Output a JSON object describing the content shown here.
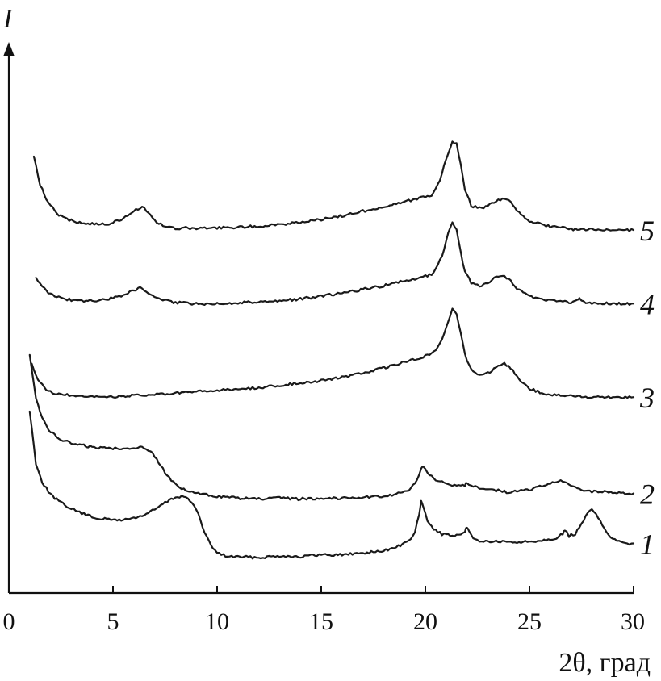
{
  "chart_data": {
    "type": "line",
    "ylabel": "I",
    "xlabel": "2θ, град",
    "xlim": [
      0,
      30
    ],
    "xticks": [
      0,
      5,
      10,
      15,
      20,
      25,
      30
    ],
    "grid": false,
    "legend": "none",
    "colors": {
      "trace": "#1a1a1a",
      "axis": "#111111"
    },
    "series": [
      {
        "name": "1",
        "x": [
          1.0,
          1.3,
          1.6,
          2.0,
          2.5,
          3.0,
          3.5,
          4.0,
          4.5,
          5.0,
          5.5,
          6.0,
          6.5,
          7.0,
          7.5,
          8.0,
          8.3,
          8.6,
          9.0,
          9.4,
          9.8,
          10.2,
          10.6,
          11.0,
          12.0,
          13.0,
          14.0,
          15.0,
          16.0,
          17.0,
          18.0,
          18.8,
          19.2,
          19.5,
          19.7,
          19.8,
          19.9,
          20.1,
          20.4,
          20.8,
          21.3,
          21.7,
          21.9,
          22.0,
          22.1,
          22.3,
          22.8,
          23.5,
          24.0,
          25.0,
          25.8,
          26.3,
          26.6,
          26.7,
          26.9,
          27.2,
          27.5,
          27.8,
          28.0,
          28.2,
          28.5,
          28.8,
          29.2,
          29.6,
          30.0
        ],
        "y": [
          1.9,
          1.35,
          1.15,
          1.02,
          0.93,
          0.87,
          0.82,
          0.78,
          0.76,
          0.75,
          0.75,
          0.77,
          0.8,
          0.86,
          0.93,
          0.99,
          1.0,
          0.98,
          0.86,
          0.62,
          0.44,
          0.38,
          0.36,
          0.36,
          0.35,
          0.37,
          0.36,
          0.38,
          0.38,
          0.4,
          0.42,
          0.48,
          0.52,
          0.62,
          0.8,
          0.95,
          0.88,
          0.74,
          0.65,
          0.6,
          0.58,
          0.58,
          0.62,
          0.68,
          0.62,
          0.55,
          0.52,
          0.52,
          0.51,
          0.52,
          0.54,
          0.56,
          0.6,
          0.64,
          0.58,
          0.6,
          0.7,
          0.82,
          0.86,
          0.82,
          0.7,
          0.58,
          0.52,
          0.5,
          0.5
        ]
      },
      {
        "name": "2",
        "x": [
          1.0,
          1.3,
          1.6,
          2.0,
          2.5,
          3.0,
          3.5,
          4.0,
          4.5,
          5.0,
          5.5,
          6.0,
          6.5,
          6.8,
          7.2,
          7.6,
          8.0,
          8.5,
          9.0,
          10.0,
          11.0,
          12.0,
          13.0,
          14.0,
          15.0,
          16.0,
          17.0,
          18.0,
          18.8,
          19.3,
          19.6,
          19.8,
          19.9,
          20.1,
          20.5,
          21.0,
          21.5,
          21.9,
          22.0,
          22.2,
          22.8,
          23.5,
          24.0,
          25.0,
          25.8,
          26.3,
          26.6,
          26.9,
          27.3,
          28.0,
          29.0,
          30.0
        ],
        "y": [
          2.5,
          2.05,
          1.82,
          1.68,
          1.6,
          1.56,
          1.54,
          1.52,
          1.51,
          1.51,
          1.51,
          1.51,
          1.52,
          1.48,
          1.36,
          1.22,
          1.12,
          1.06,
          1.03,
          1.0,
          0.98,
          0.97,
          0.98,
          0.97,
          0.98,
          0.98,
          0.99,
          1.0,
          1.03,
          1.08,
          1.16,
          1.28,
          1.32,
          1.24,
          1.18,
          1.14,
          1.1,
          1.12,
          1.15,
          1.11,
          1.08,
          1.06,
          1.04,
          1.07,
          1.12,
          1.15,
          1.16,
          1.12,
          1.08,
          1.05,
          1.04,
          1.03
        ]
      },
      {
        "name": "3",
        "x": [
          1.1,
          1.4,
          1.8,
          2.2,
          2.8,
          3.5,
          4.5,
          5.5,
          6.5,
          7.5,
          8.5,
          9.5,
          10.5,
          11.5,
          12.5,
          13.5,
          14.5,
          15.5,
          16.5,
          17.5,
          18.5,
          19.3,
          19.8,
          20.4,
          20.8,
          21.1,
          21.3,
          21.5,
          21.7,
          21.9,
          22.2,
          22.6,
          23.0,
          23.4,
          23.8,
          24.1,
          24.5,
          25.0,
          25.8,
          27.0,
          28.5,
          30.0
        ],
        "y": [
          2.4,
          2.22,
          2.13,
          2.09,
          2.07,
          2.05,
          2.05,
          2.06,
          2.07,
          2.08,
          2.1,
          2.11,
          2.13,
          2.14,
          2.16,
          2.19,
          2.21,
          2.24,
          2.28,
          2.33,
          2.39,
          2.44,
          2.47,
          2.52,
          2.66,
          2.86,
          2.98,
          2.92,
          2.74,
          2.5,
          2.34,
          2.28,
          2.3,
          2.36,
          2.4,
          2.36,
          2.24,
          2.14,
          2.08,
          2.06,
          2.05,
          2.05
        ]
      },
      {
        "name": "4",
        "x": [
          1.3,
          1.6,
          2.0,
          2.5,
          3.0,
          3.5,
          4.0,
          4.5,
          5.0,
          5.5,
          6.0,
          6.3,
          6.6,
          7.0,
          7.5,
          8.0,
          9.0,
          10.0,
          11.0,
          12.0,
          13.0,
          14.0,
          15.0,
          16.0,
          17.0,
          18.0,
          19.0,
          19.8,
          20.4,
          20.8,
          21.1,
          21.3,
          21.5,
          21.7,
          21.9,
          22.2,
          22.6,
          23.0,
          23.4,
          23.7,
          24.0,
          24.4,
          25.0,
          26.0,
          27.0,
          27.3,
          27.4,
          27.5,
          27.7,
          28.5,
          30.0
        ],
        "y": [
          3.32,
          3.22,
          3.14,
          3.1,
          3.08,
          3.07,
          3.07,
          3.08,
          3.1,
          3.13,
          3.18,
          3.21,
          3.17,
          3.1,
          3.07,
          3.05,
          3.04,
          3.04,
          3.05,
          3.06,
          3.07,
          3.09,
          3.12,
          3.15,
          3.19,
          3.23,
          3.28,
          3.32,
          3.36,
          3.54,
          3.78,
          3.9,
          3.82,
          3.58,
          3.38,
          3.26,
          3.23,
          3.26,
          3.32,
          3.34,
          3.3,
          3.2,
          3.12,
          3.07,
          3.05,
          3.07,
          3.1,
          3.07,
          3.05,
          3.04,
          3.04
        ]
      },
      {
        "name": "5",
        "x": [
          1.2,
          1.5,
          1.9,
          2.4,
          3.0,
          3.6,
          4.2,
          4.8,
          5.4,
          6.0,
          6.4,
          6.7,
          7.0,
          7.5,
          8.0,
          9.0,
          10.0,
          11.0,
          12.0,
          13.0,
          14.0,
          15.0,
          16.0,
          17.0,
          18.0,
          19.0,
          19.8,
          20.3,
          20.7,
          21.0,
          21.3,
          21.5,
          21.7,
          21.9,
          22.2,
          22.6,
          23.0,
          23.4,
          23.8,
          24.1,
          24.5,
          25.0,
          26.0,
          27.0,
          28.5,
          30.0
        ],
        "y": [
          4.6,
          4.3,
          4.1,
          3.98,
          3.92,
          3.89,
          3.88,
          3.89,
          3.93,
          4.02,
          4.06,
          4.01,
          3.92,
          3.86,
          3.84,
          3.84,
          3.84,
          3.85,
          3.86,
          3.88,
          3.9,
          3.93,
          3.97,
          4.02,
          4.07,
          4.12,
          4.16,
          4.19,
          4.34,
          4.58,
          4.76,
          4.73,
          4.52,
          4.25,
          4.08,
          4.05,
          4.07,
          4.13,
          4.16,
          4.12,
          4.0,
          3.91,
          3.86,
          3.83,
          3.82,
          3.82
        ]
      }
    ]
  }
}
